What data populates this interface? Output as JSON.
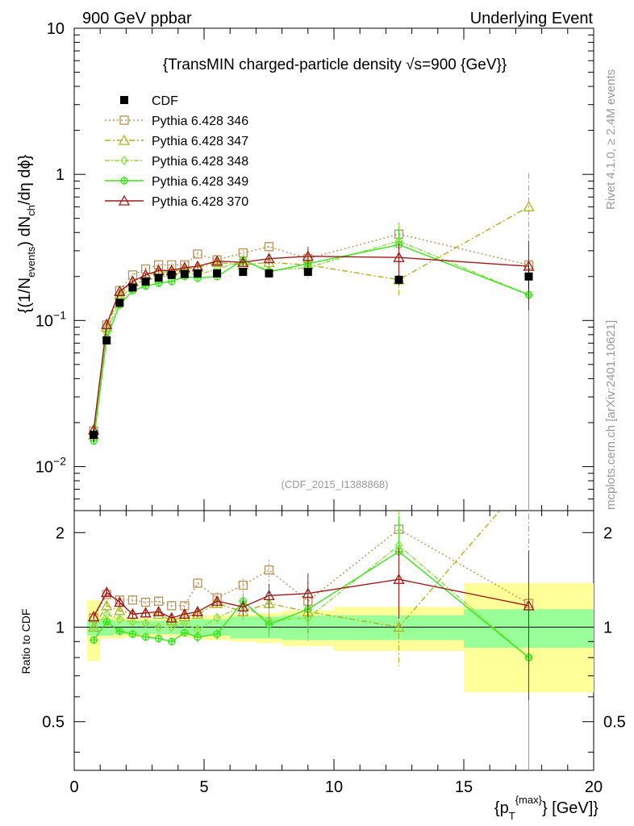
{
  "header": {
    "left": "900 GeV ppbar",
    "right": "Underlying Event"
  },
  "side": {
    "rivet": "Rivet 4.1.0, ≥ 2.4M events",
    "mcplots": "mcplots.cern.ch [arXiv:2401.10621]"
  },
  "chart_data": {
    "type": "scatter",
    "title": "{TransMIN charged-particle density √s=900 {GeV}}",
    "reference": "(CDF_2015_I1388868)",
    "xlabel": "{p_T^{max}} [GeV]",
    "ylabel_top": "{(1/N_events) dN_ch/dη dϕ}",
    "ylabel_bottom": "Ratio to CDF",
    "xlim": [
      0,
      20
    ],
    "ylim_top": [
      0.005,
      10
    ],
    "ylim_bottom": [
      0.35,
      2.35
    ],
    "x_ticks": [
      "0",
      "5",
      "10",
      "15",
      "20"
    ],
    "y_ticks_top": [
      "10^-2",
      "10^-1",
      "1",
      "10"
    ],
    "y_ticks_bottom": [
      "0.5",
      "1",
      "2"
    ],
    "x": [
      0.75,
      1.25,
      1.75,
      2.25,
      2.75,
      3.25,
      3.75,
      4.25,
      4.75,
      5.5,
      6.5,
      7.5,
      9.0,
      12.5,
      17.5
    ],
    "bin_edges": [
      0.5,
      1.0,
      1.5,
      2.0,
      2.5,
      3.0,
      3.5,
      4.0,
      4.5,
      5.0,
      6.0,
      7.0,
      8.0,
      10.0,
      15.0,
      20.0
    ],
    "data": {
      "name": "CDF",
      "values": [
        0.0165,
        0.073,
        0.132,
        0.168,
        0.185,
        0.196,
        0.205,
        0.208,
        0.21,
        0.21,
        0.215,
        0.21,
        0.215,
        0.19,
        0.2
      ],
      "band_stat": [
        0.06,
        0.06,
        0.05,
        0.05,
        0.05,
        0.05,
        0.05,
        0.05,
        0.06,
        0.06,
        0.08,
        0.08,
        0.09,
        0.09,
        0.14
      ],
      "band_total": [
        0.22,
        0.08,
        0.08,
        0.07,
        0.07,
        0.07,
        0.07,
        0.07,
        0.08,
        0.09,
        0.1,
        0.11,
        0.13,
        0.16,
        0.38
      ]
    },
    "series": [
      {
        "name": "Pythia 6.428 346",
        "color": "#b89155",
        "dash": "2,3",
        "marker": "square",
        "values": [
          0.0175,
          0.093,
          0.16,
          0.205,
          0.225,
          0.24,
          0.24,
          0.24,
          0.285,
          0.26,
          0.29,
          0.32,
          0.265,
          0.39,
          0.24
        ],
        "ratio": [
          1.07,
          1.27,
          1.22,
          1.22,
          1.2,
          1.21,
          1.17,
          1.17,
          1.38,
          1.24,
          1.36,
          1.52,
          1.21,
          2.05,
          1.19
        ],
        "err": [
          0.02,
          0.03,
          0.03,
          0.03,
          0.03,
          0.03,
          0.03,
          0.03,
          0.04,
          0.04,
          0.05,
          0.08,
          0.15,
          0.2,
          0.4
        ]
      },
      {
        "name": "Pythia 6.428 347",
        "color": "#a8b41c",
        "dash": "7,3,2,3",
        "marker": "triangle",
        "values": [
          0.0165,
          0.09,
          0.15,
          0.185,
          0.205,
          0.215,
          0.215,
          0.225,
          0.23,
          0.25,
          0.24,
          0.25,
          0.24,
          0.19,
          0.6
        ],
        "ratio": [
          1.0,
          1.17,
          1.13,
          1.1,
          1.11,
          1.1,
          1.05,
          1.08,
          1.1,
          1.19,
          1.12,
          1.19,
          1.12,
          1.0,
          3.0
        ],
        "err": [
          0.02,
          0.03,
          0.03,
          0.03,
          0.03,
          0.03,
          0.03,
          0.03,
          0.04,
          0.04,
          0.06,
          0.08,
          0.15,
          0.25,
          0.7
        ]
      },
      {
        "name": "Pythia 6.428 348",
        "color": "#8cdc3c",
        "dash": "6,2,2,2",
        "marker": "diamond",
        "values": [
          0.0165,
          0.082,
          0.14,
          0.175,
          0.19,
          0.195,
          0.205,
          0.215,
          0.205,
          0.225,
          0.255,
          0.22,
          0.23,
          0.35,
          0.15
        ],
        "ratio": [
          1.0,
          1.1,
          1.06,
          1.04,
          1.03,
          1.0,
          1.0,
          1.03,
          0.98,
          1.07,
          1.17,
          1.05,
          1.07,
          1.82,
          0.8
        ],
        "err": [
          0.02,
          0.03,
          0.03,
          0.03,
          0.03,
          0.03,
          0.03,
          0.03,
          0.04,
          0.04,
          0.06,
          0.09,
          0.16,
          0.3,
          1.0
        ]
      },
      {
        "name": "Pythia 6.428 349",
        "color": "#3ae31c",
        "dash": "",
        "marker": "plus",
        "values": [
          0.015,
          0.076,
          0.128,
          0.16,
          0.172,
          0.18,
          0.185,
          0.2,
          0.195,
          0.2,
          0.26,
          0.215,
          0.245,
          0.33,
          0.15
        ],
        "ratio": [
          0.91,
          1.04,
          0.97,
          0.95,
          0.93,
          0.92,
          0.9,
          0.96,
          0.93,
          0.95,
          1.21,
          1.02,
          1.14,
          1.74,
          0.8
        ],
        "err": [
          0.02,
          0.03,
          0.03,
          0.03,
          0.03,
          0.03,
          0.03,
          0.03,
          0.04,
          0.04,
          0.06,
          0.09,
          0.16,
          0.3,
          1.0
        ]
      },
      {
        "name": "Pythia 6.428 370",
        "color": "#9e1a1a",
        "dash": "",
        "marker": "triangle",
        "values": [
          0.0178,
          0.094,
          0.158,
          0.185,
          0.205,
          0.22,
          0.22,
          0.23,
          0.235,
          0.255,
          0.25,
          0.265,
          0.275,
          0.27,
          0.235
        ],
        "ratio": [
          1.08,
          1.29,
          1.2,
          1.1,
          1.11,
          1.12,
          1.07,
          1.1,
          1.12,
          1.21,
          1.16,
          1.26,
          1.28,
          1.42,
          1.17
        ],
        "err": [
          0.02,
          0.03,
          0.03,
          0.03,
          0.03,
          0.03,
          0.03,
          0.03,
          0.04,
          0.04,
          0.06,
          0.09,
          0.16,
          0.25,
          0.5
        ]
      }
    ]
  }
}
